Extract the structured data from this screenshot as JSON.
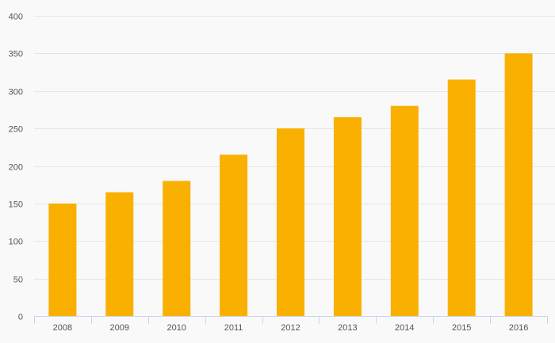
{
  "chart_data": {
    "type": "bar",
    "title": "",
    "xlabel": "",
    "ylabel": "",
    "categories": [
      "2008",
      "2009",
      "2010",
      "2011",
      "2012",
      "2013",
      "2014",
      "2015",
      "2016"
    ],
    "values": [
      150,
      165,
      180,
      215,
      250,
      265,
      280,
      315,
      350
    ],
    "ylim": [
      0,
      400
    ],
    "yticks": [
      0,
      50,
      100,
      150,
      200,
      250,
      300,
      350,
      400
    ],
    "grid": true,
    "legend": "none",
    "bar_color": "#f9b000",
    "grid_color": "#e6e6e6",
    "axis_color": "#ccd6eb",
    "background_color": "#f9f9f9"
  }
}
